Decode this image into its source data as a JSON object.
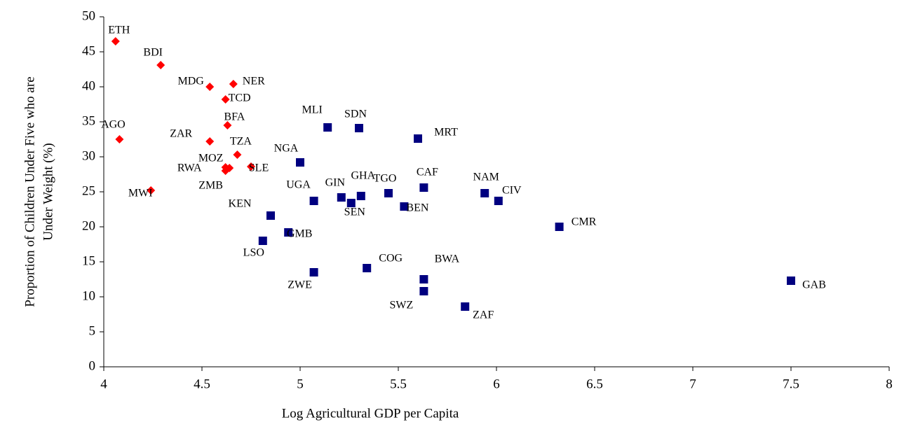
{
  "chart_data": {
    "type": "scatter",
    "xlabel": "Log Agricultural GDP per Capita",
    "ylabel": [
      "Proportion of Children Under Five who are",
      "Under Weight (%)"
    ],
    "xlim": [
      4,
      8
    ],
    "xticks": [
      4,
      4.5,
      5,
      5.5,
      6,
      6.5,
      7,
      7.5,
      8
    ],
    "ylim": [
      0,
      50
    ],
    "yticks": [
      0,
      5,
      10,
      15,
      20,
      25,
      30,
      35,
      40,
      45,
      50
    ],
    "grid": false,
    "series": [
      {
        "color": "#ff0000",
        "marker": "diamond",
        "labels": [
          "ETH",
          "BDI",
          "MDG",
          "NER",
          "TCD",
          "BFA",
          "AGO",
          "ZAR",
          "TZA",
          "MOZ",
          "RWA",
          "ZMB",
          "SLE",
          "MWI"
        ],
        "x": [
          4.06,
          4.29,
          4.54,
          4.66,
          4.62,
          4.63,
          4.08,
          4.54,
          4.68,
          4.62,
          4.64,
          4.62,
          4.75,
          4.24
        ],
        "values": [
          46.5,
          43.1,
          40.0,
          40.4,
          38.2,
          34.5,
          32.5,
          32.2,
          30.3,
          28.5,
          28.4,
          28.0,
          28.6,
          25.2
        ]
      },
      {
        "color": "#000080",
        "marker": "square",
        "labels": [
          "MLI",
          "SDN",
          "MRT",
          "NGA",
          "GIN",
          "GHA",
          "TGO",
          "CAF",
          "NAM",
          "CIV",
          "UGA",
          "SEN",
          "BEN",
          "KEN",
          "CMR",
          "GMB",
          "LSO",
          "COG",
          "ZWE",
          "BWA",
          "SWZ",
          "ZAF",
          "GAB"
        ],
        "x": [
          5.14,
          5.3,
          5.6,
          5.0,
          5.21,
          5.31,
          5.45,
          5.63,
          5.94,
          6.01,
          5.07,
          5.26,
          5.53,
          4.85,
          6.32,
          4.94,
          4.81,
          5.34,
          5.07,
          5.63,
          5.63,
          5.84,
          7.5
        ],
        "values": [
          34.2,
          34.1,
          32.6,
          29.2,
          24.2,
          24.4,
          24.8,
          25.6,
          24.8,
          23.7,
          23.7,
          23.4,
          22.9,
          21.6,
          20.0,
          19.2,
          18.0,
          14.1,
          13.5,
          12.5,
          10.8,
          8.6,
          12.3
        ]
      }
    ]
  }
}
